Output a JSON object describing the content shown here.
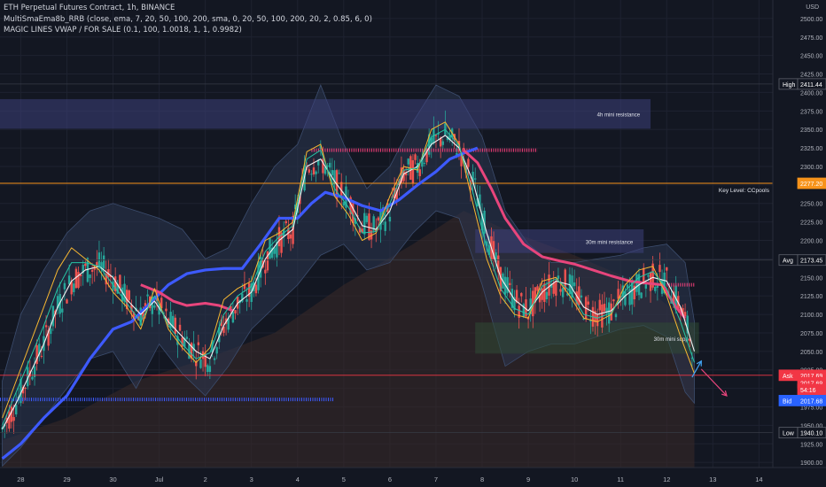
{
  "header": {
    "title": "ETH Perpetual Futures Contract, 1h, BINANCE",
    "indicator1": "MultiSmaEma8b_RRB (close, ema, 7, 20, 50, 100, 200, sma, 0, 20, 50, 100, 200, 20, 2, 0.85, 6, 0)",
    "indicator2": "MAGIC LINES VWAP / FOR SALE (0.1, 100, 1.0018, 1, 1, 0.9982)"
  },
  "chart_data": {
    "type": "line",
    "ylim": [
      1893,
      2525
    ],
    "x_range": [
      27.55,
      14.3
    ],
    "y_axis": {
      "unit_label": "USD",
      "ticks": [
        "2500.00",
        "2475.00",
        "2450.00",
        "2425.00",
        "2400.00",
        "2375.00",
        "2350.00",
        "2325.00",
        "2300.00",
        "2275.00",
        "2250.00",
        "2225.00",
        "2200.00",
        "2175.00",
        "2150.00",
        "2125.00",
        "2100.00",
        "2075.00",
        "2050.00",
        "2025.00",
        "2000.00",
        "1975.00",
        "1950.00",
        "1925.00",
        "1900.00"
      ]
    },
    "x_axis": {
      "ticks": [
        {
          "label": "28",
          "pos": 28
        },
        {
          "label": "29",
          "pos": 29
        },
        {
          "label": "30",
          "pos": 30
        },
        {
          "label": "Jul",
          "pos": 31
        },
        {
          "label": "2",
          "pos": 32
        },
        {
          "label": "3",
          "pos": 33
        },
        {
          "label": "4",
          "pos": 34
        },
        {
          "label": "5",
          "pos": 35
        },
        {
          "label": "6",
          "pos": 36
        },
        {
          "label": "7",
          "pos": 37
        },
        {
          "label": "8",
          "pos": 38
        },
        {
          "label": "9",
          "pos": 39
        },
        {
          "label": "10",
          "pos": 40
        },
        {
          "label": "11",
          "pos": 41
        },
        {
          "label": "12",
          "pos": 42
        },
        {
          "label": "13",
          "pos": 43
        },
        {
          "label": "14",
          "pos": 44
        }
      ]
    },
    "price_labels": [
      {
        "tag": "High",
        "value": "2411.44",
        "y": 2411.44,
        "color": "#131722",
        "border": "#5d606b"
      },
      {
        "tag": "",
        "value": "2277.20",
        "y": 2277.2,
        "color": "#f7931a",
        "border": "#f7931a"
      },
      {
        "tag": "Avg",
        "value": "2173.45",
        "y": 2173.45,
        "color": "#131722",
        "border": "#5d606b"
      },
      {
        "tag": "Ask",
        "value": "2017.69",
        "y": 2017.69,
        "color": "#f23645",
        "border": "#f23645"
      },
      {
        "tag": "",
        "value": "2017.69",
        "y": 2007.5,
        "color": "#f23645",
        "border": "#f23645"
      },
      {
        "tag": "",
        "value": "54:16",
        "y": 1998.5,
        "color": "#f23645",
        "border": "#f23645"
      },
      {
        "tag": "Bid",
        "value": "2017.68",
        "y": 1983.5,
        "color": "#2962ff",
        "border": "#2962ff"
      },
      {
        "tag": "Low",
        "value": "1940.10",
        "y": 1940.1,
        "color": "#131722",
        "border": "#5d606b"
      }
    ],
    "key_level": {
      "label": "Key Level: CCpools",
      "value": 2277.2,
      "color": "#f7931a"
    },
    "zones": [
      {
        "label": "4h mini resistance",
        "x0": 27.55,
        "x1": 41.65,
        "y0": 2351,
        "y1": 2391,
        "color": "#3d3f7a"
      },
      {
        "label": "30m mini resistance",
        "x0": 37.85,
        "x1": 41.5,
        "y0": 2183,
        "y1": 2215,
        "color": "#3d3f7a"
      },
      {
        "label": "30m mini supp",
        "x0": 37.85,
        "x1": 42.7,
        "y0": 2047,
        "y1": 2089,
        "color": "#2f4a35"
      }
    ],
    "horizontal_markers": [
      {
        "name": "vwap-level-red",
        "x0": 34.3,
        "x1": 39.2,
        "y": 2322,
        "color": "#f23f7a"
      },
      {
        "name": "vwap-level-red-2",
        "x0": 42.0,
        "x1": 42.6,
        "y": 2140,
        "color": "#f23f7a"
      },
      {
        "name": "vwap-level-blue",
        "x0": 27.55,
        "x1": 34.8,
        "y": 1985,
        "color": "#3d5afe"
      }
    ],
    "series": [
      {
        "name": "",
        "color": "#3d5afe",
        "width": 3.2,
        "x": [
          27.6,
          28.0,
          28.5,
          29.0,
          29.5,
          30.0,
          30.4,
          30.8,
          31.2,
          31.6,
          32.0,
          32.4,
          32.8,
          33.2,
          33.6,
          34.0,
          34.3,
          34.6,
          35.0,
          35.4,
          35.8,
          36.2,
          36.6,
          37.0,
          37.3,
          37.6,
          37.9
        ],
        "y": [
          1905,
          1925,
          1960,
          1990,
          2040,
          2080,
          2090,
          2115,
          2140,
          2155,
          2160,
          2162,
          2162,
          2195,
          2230,
          2230,
          2250,
          2265,
          2258,
          2247,
          2240,
          2255,
          2275,
          2293,
          2310,
          2318,
          2325
        ]
      },
      {
        "name": "",
        "color": "#e8457c",
        "width": 3,
        "x": [
          37.6,
          37.9,
          38.2,
          38.5,
          38.9,
          39.3,
          39.7,
          40.0,
          40.4,
          40.8,
          41.2,
          41.6,
          41.9,
          42.2,
          42.4
        ],
        "y": [
          2322,
          2305,
          2270,
          2230,
          2195,
          2178,
          2172,
          2168,
          2160,
          2152,
          2145,
          2142,
          2140,
          2110,
          2095
        ]
      },
      {
        "name": "",
        "color": "#e8457c",
        "width": 3,
        "x": [
          30.6,
          31.0,
          31.3,
          31.6,
          32.0,
          32.3,
          32.6
        ],
        "y": [
          2140,
          2130,
          2118,
          2112,
          2115,
          2112,
          2105
        ]
      },
      {
        "name": "",
        "color": "#f2f2f2",
        "width": 1.1,
        "x": [
          27.6,
          27.9,
          28.2,
          28.5,
          28.8,
          29.1,
          29.4,
          29.7,
          30.0,
          30.3,
          30.6,
          30.9,
          31.2,
          31.5,
          31.8,
          32.1,
          32.4,
          32.7,
          33.0,
          33.3,
          33.6,
          33.9,
          34.2,
          34.5,
          34.8,
          35.1,
          35.4,
          35.7,
          36.0,
          36.3,
          36.6,
          36.9,
          37.2,
          37.5,
          37.8,
          38.1,
          38.4,
          38.7,
          39.0,
          39.3,
          39.6,
          39.9,
          40.2,
          40.5,
          40.8,
          41.1,
          41.4,
          41.7,
          42.0,
          42.3,
          42.6
        ],
        "y": [
          1945,
          1980,
          2020,
          2060,
          2110,
          2145,
          2160,
          2165,
          2150,
          2120,
          2100,
          2118,
          2090,
          2070,
          2050,
          2040,
          2085,
          2115,
          2130,
          2175,
          2200,
          2215,
          2300,
          2310,
          2280,
          2255,
          2220,
          2215,
          2240,
          2290,
          2300,
          2330,
          2342,
          2325,
          2280,
          2210,
          2150,
          2120,
          2105,
          2130,
          2145,
          2140,
          2110,
          2100,
          2105,
          2125,
          2140,
          2150,
          2145,
          2110,
          2050
        ]
      },
      {
        "name": "",
        "color": "#f7b731",
        "width": 1,
        "x": [
          27.6,
          27.9,
          28.2,
          28.5,
          28.8,
          29.1,
          29.4,
          29.7,
          30.0,
          30.3,
          30.6,
          30.9,
          31.2,
          31.5,
          31.8,
          32.1,
          32.4,
          32.7,
          33.0,
          33.3,
          33.6,
          33.9,
          34.2,
          34.5,
          34.8,
          35.1,
          35.4,
          35.7,
          36.0,
          36.3,
          36.6,
          36.9,
          37.2,
          37.5,
          37.8,
          38.1,
          38.4,
          38.7,
          39.0,
          39.3,
          39.6,
          39.9,
          40.2,
          40.5,
          40.8,
          41.1,
          41.4,
          41.7,
          42.0,
          42.3,
          42.6
        ],
        "y": [
          1960,
          2010,
          2060,
          2110,
          2160,
          2190,
          2175,
          2160,
          2130,
          2110,
          2080,
          2135,
          2080,
          2055,
          2035,
          2055,
          2120,
          2135,
          2145,
          2200,
          2210,
          2225,
          2320,
          2330,
          2260,
          2235,
          2200,
          2210,
          2260,
          2300,
          2295,
          2350,
          2360,
          2330,
          2250,
          2175,
          2125,
          2100,
          2095,
          2145,
          2150,
          2125,
          2095,
          2090,
          2100,
          2140,
          2160,
          2165,
          2125,
          2070,
          2020
        ]
      },
      {
        "name": "",
        "color": "#26c6a6",
        "width": 1,
        "x": [
          27.6,
          27.9,
          28.2,
          28.5,
          28.8,
          29.1,
          29.4,
          29.7,
          30.0,
          30.3,
          30.6,
          30.9,
          31.2,
          31.5,
          31.8,
          32.1,
          32.4,
          32.7,
          33.0,
          33.3,
          33.6,
          33.9,
          34.2,
          34.5,
          34.8,
          35.1,
          35.4,
          35.7,
          36.0,
          36.3,
          36.6,
          36.9,
          37.2,
          37.5,
          37.8,
          38.1,
          38.4,
          38.7,
          39.0,
          39.3,
          39.6,
          39.9,
          40.2,
          40.5,
          40.8,
          41.1,
          41.4,
          41.7,
          42.0,
          42.3,
          42.6
        ],
        "y": [
          1950,
          1995,
          2040,
          2085,
          2135,
          2170,
          2170,
          2165,
          2140,
          2115,
          2090,
          2125,
          2085,
          2060,
          2040,
          2048,
          2100,
          2125,
          2138,
          2185,
          2205,
          2220,
          2310,
          2322,
          2270,
          2245,
          2210,
          2212,
          2250,
          2295,
          2298,
          2340,
          2350,
          2328,
          2265,
          2190,
          2135,
          2108,
          2100,
          2138,
          2148,
          2132,
          2100,
          2095,
          2102,
          2132,
          2150,
          2158,
          2135,
          2090,
          2035
        ]
      }
    ],
    "arrows": [
      {
        "name": "down-arrow",
        "from": [
          42.75,
          2026
        ],
        "to": [
          43.3,
          1990
        ],
        "color": "#e8457c"
      },
      {
        "name": "up-arrow-tip",
        "from": [
          42.55,
          2015
        ],
        "to": [
          42.75,
          2037
        ],
        "color": "#42a5f5"
      }
    ]
  }
}
